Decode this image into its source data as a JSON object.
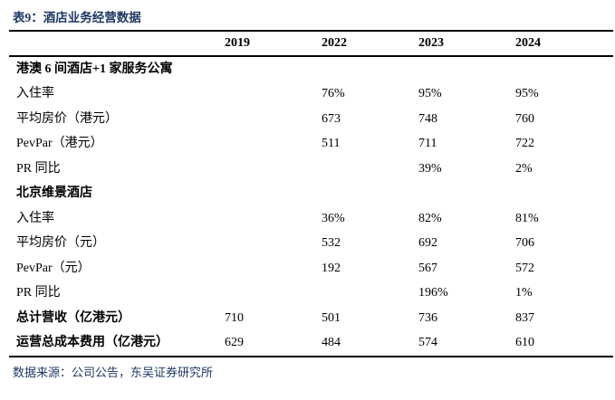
{
  "title": "表9：酒店业务经营数据",
  "colors": {
    "accent": "#1F3864",
    "text": "#000000",
    "rule": "#000000"
  },
  "table": {
    "columns": [
      "2019",
      "2022",
      "2023",
      "2024"
    ],
    "rows": [
      {
        "label": "港澳 6 间酒店+1 家服务公寓",
        "bold": true,
        "values": [
          "",
          "",
          "",
          ""
        ]
      },
      {
        "label": "入住率",
        "bold": false,
        "values": [
          "",
          "76%",
          "95%",
          "95%"
        ]
      },
      {
        "label": "平均房价（港元）",
        "bold": false,
        "values": [
          "",
          "673",
          "748",
          "760"
        ]
      },
      {
        "label": "PevPar（港元）",
        "bold": false,
        "values": [
          "",
          "511",
          "711",
          "722"
        ]
      },
      {
        "label": "PR 同比",
        "bold": false,
        "values": [
          "",
          "",
          "39%",
          "2%"
        ]
      },
      {
        "label": "北京维景酒店",
        "bold": true,
        "values": [
          "",
          "",
          "",
          ""
        ]
      },
      {
        "label": "入住率",
        "bold": false,
        "values": [
          "",
          "36%",
          "82%",
          "81%"
        ]
      },
      {
        "label": "平均房价（元）",
        "bold": false,
        "values": [
          "",
          "532",
          "692",
          "706"
        ]
      },
      {
        "label": "PevPar（元）",
        "bold": false,
        "values": [
          "",
          "192",
          "567",
          "572"
        ]
      },
      {
        "label": "PR 同比",
        "bold": false,
        "values": [
          "",
          "",
          "196%",
          "1%"
        ]
      },
      {
        "label": "总计营收（亿港元）",
        "bold": true,
        "values": [
          "710",
          "501",
          "736",
          "837"
        ]
      },
      {
        "label": "运营总成本费用（亿港元）",
        "bold": true,
        "values": [
          "629",
          "484",
          "574",
          "610"
        ]
      }
    ]
  },
  "footer": "数据来源：公司公告，东吴证券研究所"
}
